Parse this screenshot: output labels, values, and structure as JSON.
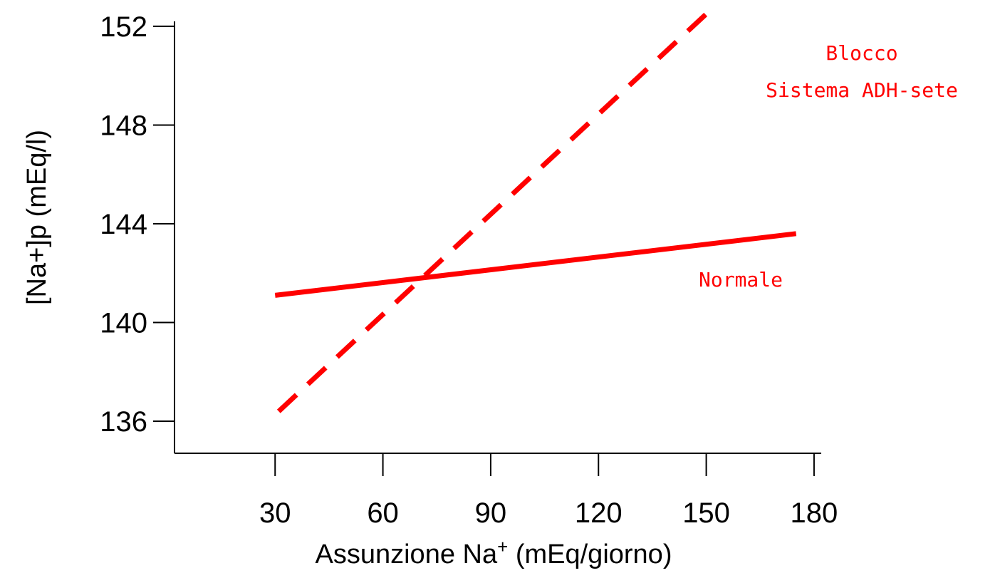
{
  "chart_data": {
    "type": "line",
    "xlabel_main": "Assunzione Na",
    "xlabel_sup": "+",
    "xlabel_rest": " (mEq/giorno)",
    "ylabel": "[Na+]p (mEq/l)",
    "xlim": [
      2,
      182
    ],
    "ylim": [
      134.7,
      152.2
    ],
    "x_ticks": [
      30,
      60,
      90,
      120,
      150,
      180
    ],
    "y_ticks": [
      136,
      140,
      144,
      148,
      152
    ],
    "grid": false,
    "legend": "none",
    "series": [
      {
        "name": "Normale",
        "style": "solid",
        "color": "#ff0000",
        "x": [
          30,
          175
        ],
        "y": [
          141.1,
          143.6
        ]
      },
      {
        "name": "Blocco Sistema ADH-sete",
        "label_lines": [
          "Blocco",
          "Sistema ADH-sete"
        ],
        "style": "dashed",
        "color": "#ff0000",
        "x": [
          31,
          150
        ],
        "y": [
          136.4,
          152.5
        ]
      }
    ]
  }
}
